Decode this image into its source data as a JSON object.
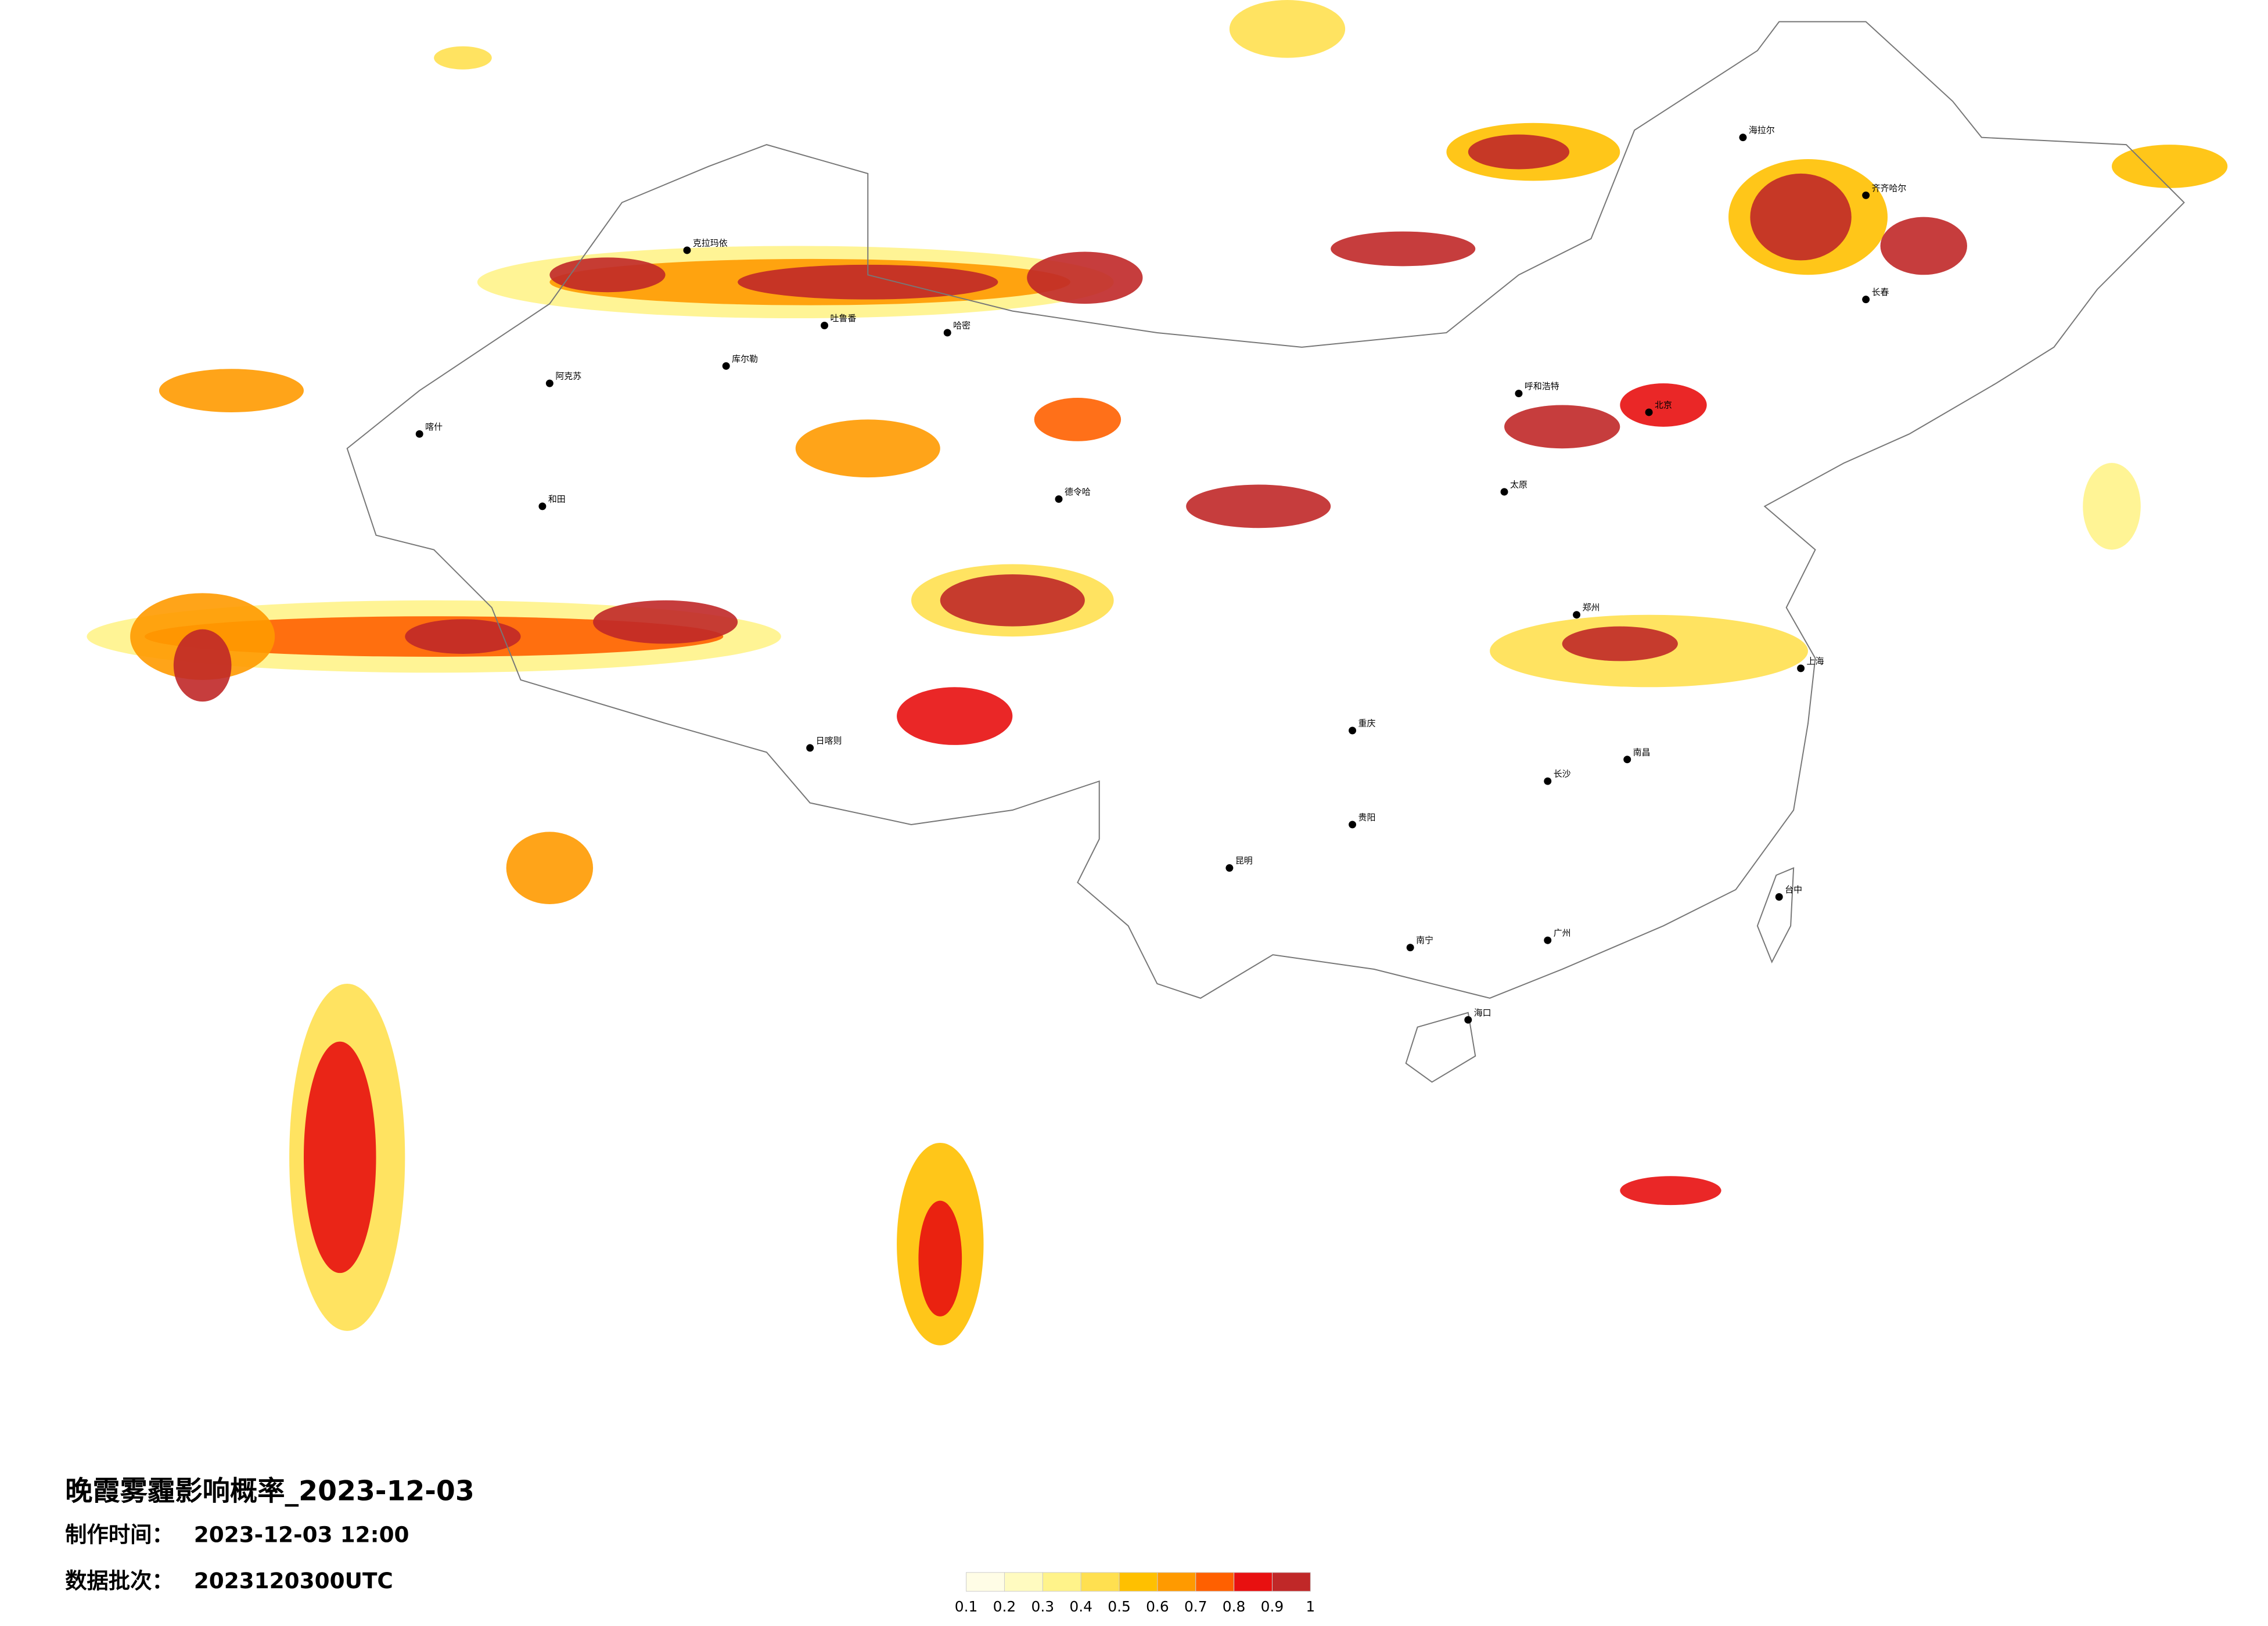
{
  "title": "晚霞雾霾影响概率_2023-12-03",
  "made_label": "制作时间：",
  "made_time": "2023-12-03 12:00",
  "batch_label": "数据批次：",
  "batch": "2023120300UTC",
  "legend": {
    "colors": [
      "#fffde6",
      "#fffbc0",
      "#fff38a",
      "#ffe050",
      "#ffc000",
      "#ff9a00",
      "#ff6000",
      "#e81010",
      "#c02828"
    ],
    "ticks": [
      0.1,
      0.2,
      0.3,
      0.4,
      0.5,
      0.6,
      0.7,
      0.8,
      0.9,
      1
    ]
  },
  "cities": [
    "克拉玛依",
    "阿克苏",
    "喀什",
    "和田",
    "库尔勒",
    "哈密",
    "吐鲁番",
    "德令哈",
    "日喀则",
    "海拉尔",
    "齐齐哈尔",
    "长春",
    "呼和浩特",
    "太原",
    "郑州",
    "长沙",
    "南昌",
    "南宁",
    "昆明",
    "贵阳",
    "海口",
    "台中",
    "重庆",
    "北京",
    "上海",
    "广州"
  ]
}
